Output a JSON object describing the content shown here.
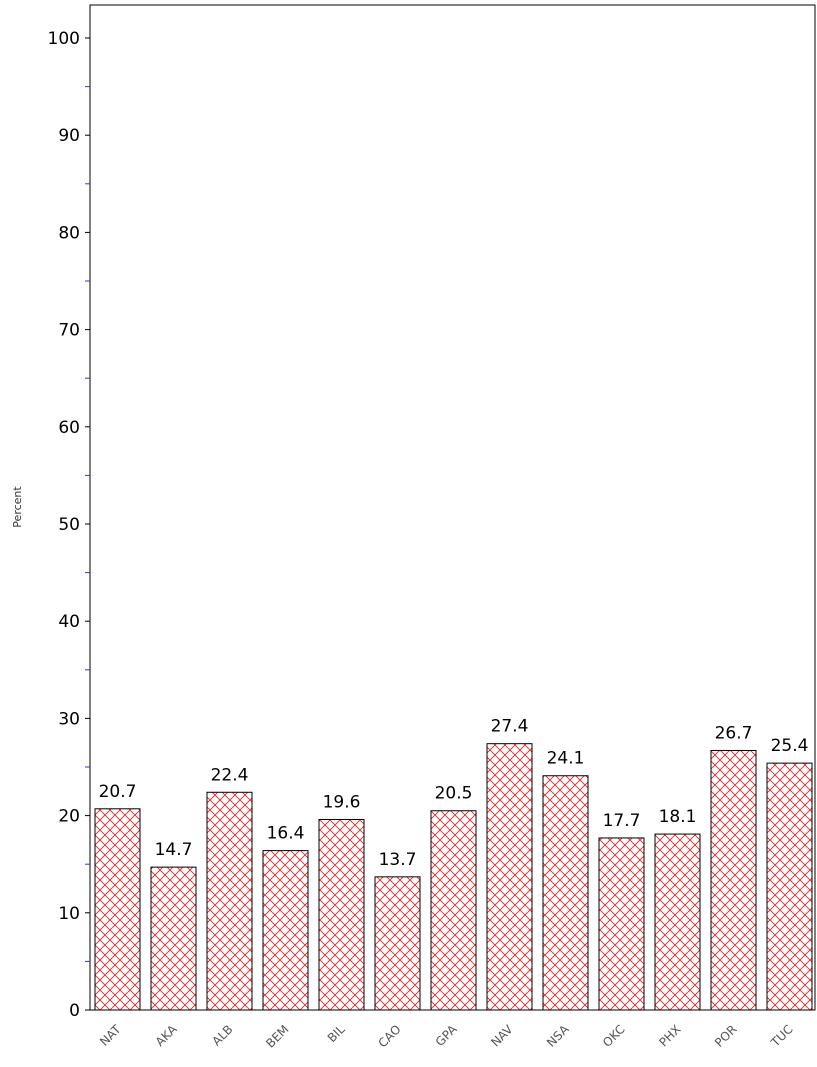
{
  "chart_data": {
    "type": "bar",
    "ylabel": "Percent",
    "ylim": [
      0,
      100
    ],
    "yticks": [
      0,
      10,
      20,
      30,
      40,
      50,
      60,
      70,
      80,
      90,
      100
    ],
    "minor_tick_step": 5,
    "grid": false,
    "categories": [
      "NAT",
      "AKA",
      "ALB",
      "BEM",
      "BIL",
      "CAO",
      "GPA",
      "NAV",
      "NSA",
      "OKC",
      "PHX",
      "POR",
      "TUC"
    ],
    "values": [
      20.7,
      14.7,
      22.4,
      16.4,
      19.6,
      13.7,
      20.5,
      27.4,
      24.1,
      17.7,
      18.1,
      26.7,
      25.4
    ],
    "value_labels": [
      "20.7",
      "14.7",
      "22.4",
      "16.4",
      "19.6",
      "13.7",
      "20.5",
      "27.4",
      "24.1",
      "17.7",
      "18.1",
      "26.7",
      "25.4"
    ],
    "bar_fill": "crosshatch",
    "hatch_color": "#e8262a",
    "bar_edge_color": "#000000",
    "minor_tick_color": "#3333cc"
  }
}
